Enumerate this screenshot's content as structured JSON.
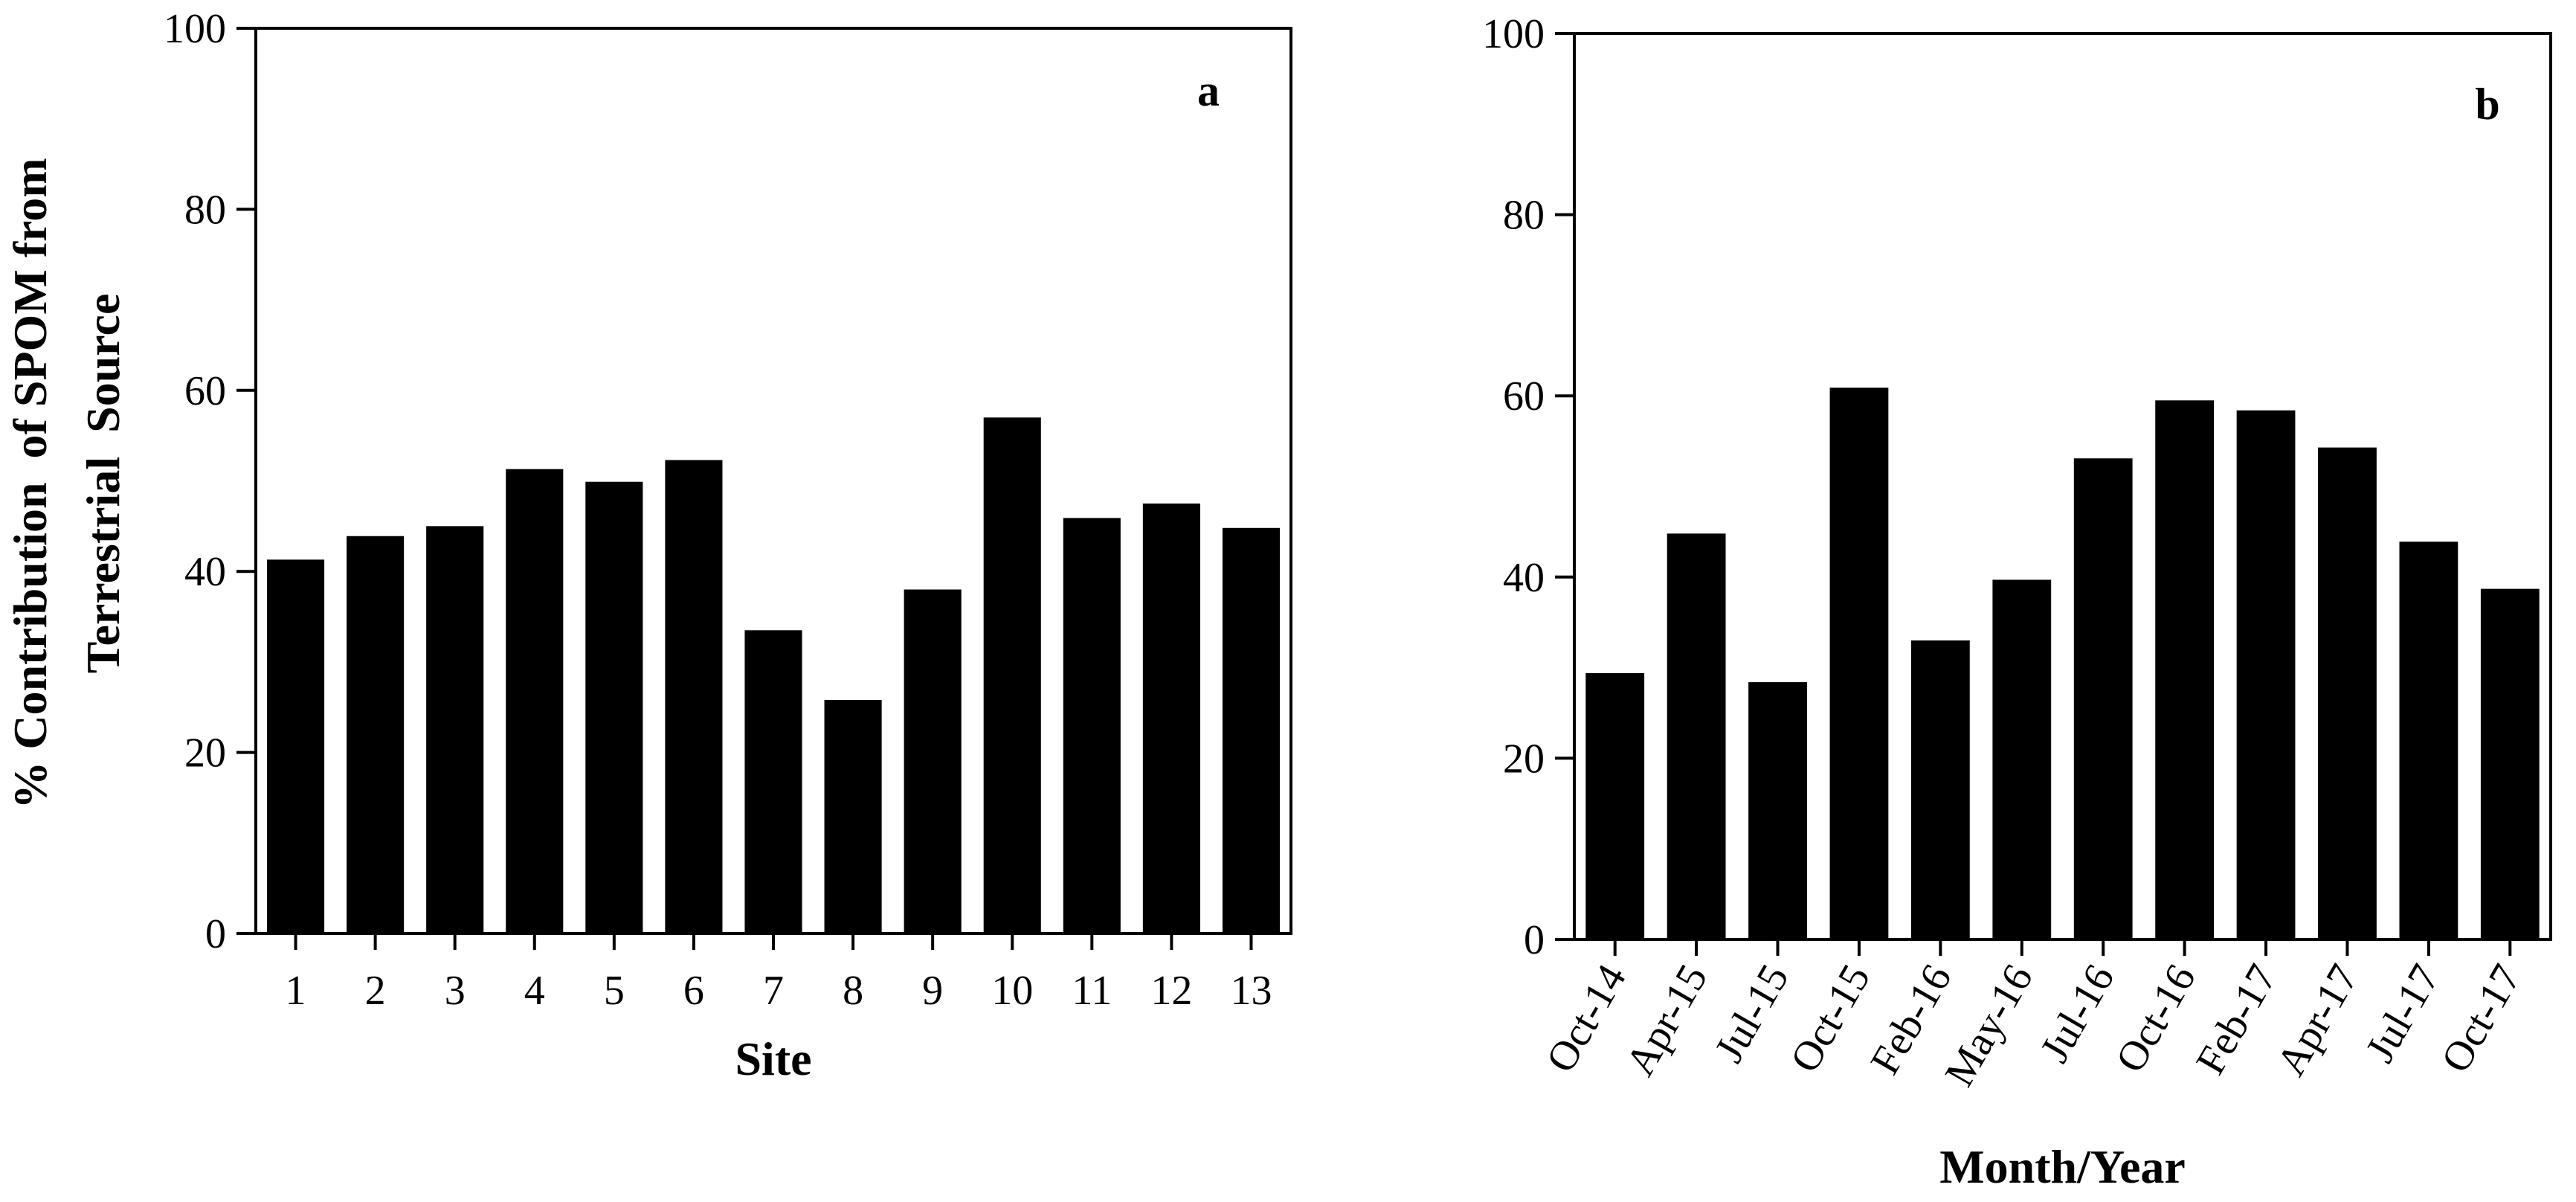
{
  "chart_data": [
    {
      "type": "bar",
      "panel_label": "a",
      "title": "",
      "xlabel": "Site",
      "ylabel_lines": [
        "% Contribution  of SPOM from",
        "Terrestrial  Source"
      ],
      "ylim": [
        0,
        100
      ],
      "yticks": [
        0,
        20,
        40,
        60,
        80,
        100
      ],
      "categories": [
        "1",
        "2",
        "3",
        "4",
        "5",
        "6",
        "7",
        "8",
        "9",
        "10",
        "11",
        "12",
        "13"
      ],
      "values": [
        41.3,
        43.9,
        45.0,
        51.3,
        49.9,
        52.3,
        33.5,
        25.8,
        38.0,
        57.0,
        45.9,
        47.5,
        44.8
      ],
      "bar_color": "#000000",
      "grid": false,
      "legend": "none"
    },
    {
      "type": "bar",
      "panel_label": "b",
      "title": "",
      "xlabel": "Month/Year",
      "ylim": [
        0,
        100
      ],
      "yticks": [
        0,
        20,
        40,
        60,
        80,
        100
      ],
      "categories": [
        "Oct-14",
        "Apr-15",
        "Jul-15",
        "Oct-15",
        "Feb-16",
        "May-16",
        "Jul-16",
        "Oct-16",
        "Feb-17",
        "Apr-17",
        "Jul-17",
        "Oct-17"
      ],
      "values": [
        29.4,
        44.8,
        28.4,
        60.9,
        33.0,
        39.7,
        53.1,
        59.5,
        58.4,
        54.3,
        43.9,
        38.7
      ],
      "bar_color": "#000000",
      "grid": false,
      "legend": "none"
    }
  ]
}
